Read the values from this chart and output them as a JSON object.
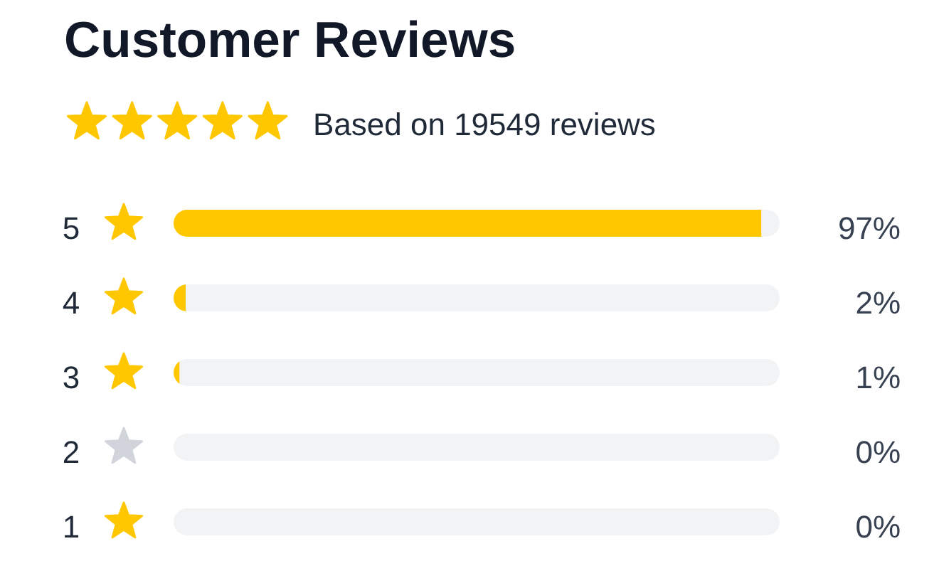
{
  "chart_data": {
    "type": "bar",
    "orientation": "horizontal",
    "stacked": true,
    "title": "Customer Reviews",
    "subtitle": "Based on 19549 reviews",
    "categories": [
      "5",
      "4",
      "3",
      "2",
      "1"
    ],
    "series": [
      {
        "color": "#ffc700",
        "values": [
          97,
          2,
          1,
          0,
          0
        ],
        "value_labels": [
          "97%",
          "2%",
          "1%",
          "0%",
          "0%"
        ]
      },
      {
        "color": "#f1f3f5",
        "values": [
          3,
          98,
          99,
          100,
          100
        ]
      }
    ],
    "xlim": [
      0,
      100
    ],
    "tick_labels": "y"
  }
}
